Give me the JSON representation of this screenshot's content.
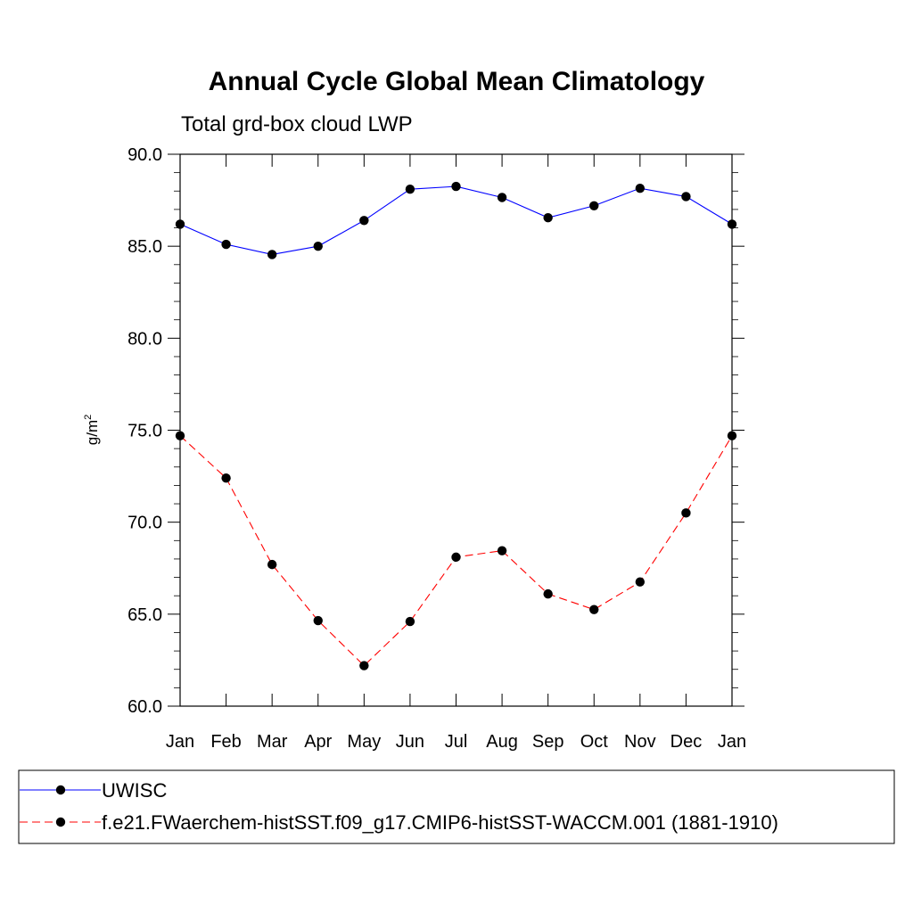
{
  "chart_data": {
    "type": "line",
    "title": "Annual Cycle Global Mean Climatology",
    "subtitle": "Total grd-box cloud LWP",
    "ylabel": "g/m",
    "ylabel_superscript": "2",
    "xlabel": "",
    "categories": [
      "Jan",
      "Feb",
      "Mar",
      "Apr",
      "May",
      "Jun",
      "Jul",
      "Aug",
      "Sep",
      "Oct",
      "Nov",
      "Dec",
      "Jan"
    ],
    "ylim": [
      60.0,
      90.0
    ],
    "yticks": [
      "60.0",
      "65.0",
      "70.0",
      "75.0",
      "80.0",
      "85.0",
      "90.0"
    ],
    "ytick_values": [
      60,
      65,
      70,
      75,
      80,
      85,
      90
    ],
    "grid": false,
    "legend_placement": "bottom",
    "series": [
      {
        "name": "UWISC",
        "color": "#0000ff",
        "line_style": "solid",
        "marker": "filled-circle",
        "values": [
          86.2,
          85.1,
          84.55,
          85.0,
          86.4,
          88.1,
          88.25,
          87.65,
          86.55,
          87.2,
          88.15,
          87.7,
          86.2
        ]
      },
      {
        "name": "f.e21.FWaerchem-histSST.f09_g17.CMIP6-histSST-WACCM.001 (1881-1910)",
        "color": "#ff0000",
        "line_style": "dashed",
        "marker": "filled-circle",
        "values": [
          74.7,
          72.4,
          67.7,
          64.65,
          62.2,
          64.6,
          68.1,
          68.45,
          66.1,
          65.25,
          66.75,
          70.5,
          74.7
        ]
      }
    ]
  }
}
